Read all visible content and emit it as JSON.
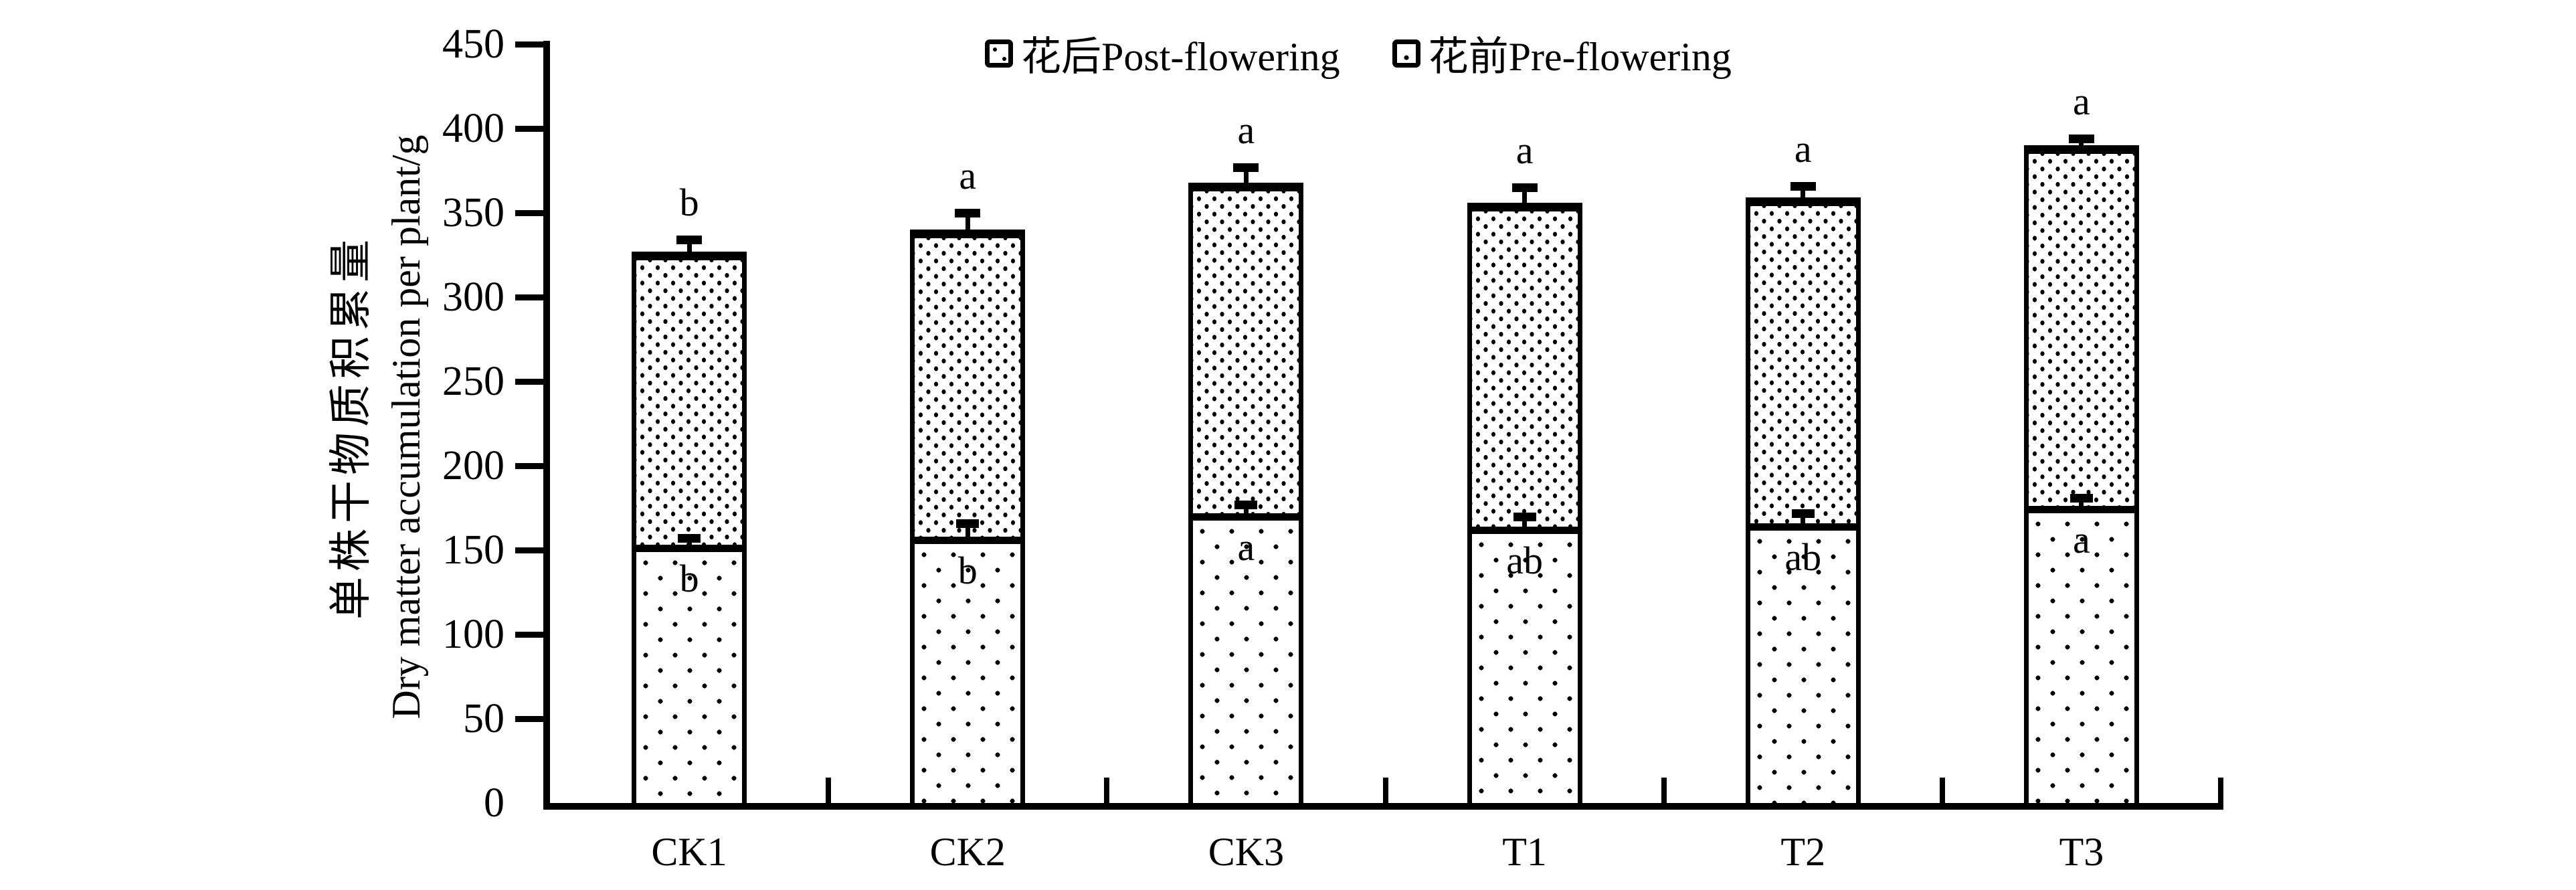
{
  "meta": {
    "background": "#ffffff",
    "ink": "#000000"
  },
  "legend": {
    "items": [
      {
        "label": "花后Post-flowering",
        "pattern": "dense-dots"
      },
      {
        "label": "花前Pre-flowering",
        "pattern": "sparse-dots"
      }
    ]
  },
  "y_axis": {
    "title_zh": "单株干物质积累量",
    "title_en": "Dry matter accumulation per plant/g",
    "min": 0,
    "max": 450,
    "step": 50,
    "ticks": [
      450,
      400,
      350,
      300,
      250,
      200,
      150,
      100,
      50,
      0
    ]
  },
  "x_axis": {
    "categories": [
      "CK1",
      "CK2",
      "CK3",
      "T1",
      "T2",
      "T3"
    ]
  },
  "chart_data": {
    "type": "bar",
    "stacked": true,
    "categories": [
      "CK1",
      "CK2",
      "CK3",
      "T1",
      "T2",
      "T3"
    ],
    "series": [
      {
        "name": "花前Pre-flowering",
        "position": "bottom",
        "pattern": "sparse-dots",
        "values": [
          153,
          158,
          172,
          164,
          166,
          176
        ]
      },
      {
        "name": "花后Post-flowering",
        "position": "top",
        "pattern": "dense-dots",
        "values": [
          174,
          182,
          196,
          192,
          193,
          214
        ]
      }
    ],
    "stack_totals": [
      327,
      340,
      368,
      356,
      359,
      390
    ],
    "error_bars": {
      "total": [
        5,
        8,
        7,
        7,
        5,
        2
      ],
      "pre": [
        2,
        6,
        3,
        4,
        4,
        3
      ]
    },
    "annotations": {
      "total_letters": [
        "b",
        "a",
        "a",
        "a",
        "a",
        "a"
      ],
      "pre_letters": [
        "b",
        "b",
        "a",
        "ab",
        "ab",
        "a"
      ]
    },
    "ylabel": "单株干物质积累量 Dry matter accumulation per plant/g",
    "ylim": [
      0,
      450
    ],
    "ytick_step": 50,
    "grid": false,
    "legend_position": "top-center"
  }
}
